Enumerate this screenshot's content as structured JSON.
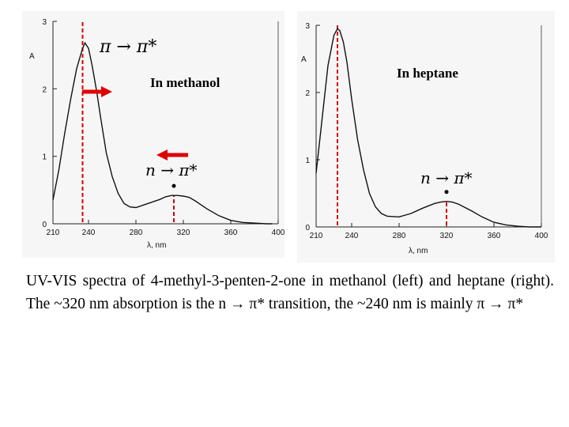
{
  "caption": "UV-VIS spectra of 4-methyl-3-penten-2-one in methanol (left) and heptane (right). The ~320 nm absorption is the n → π* transition, the ~240 nm is mainly π → π*",
  "chart_data": [
    {
      "type": "line",
      "title": "",
      "panel_label": "In methanol",
      "xlabel": "λ, nm",
      "ylabel": "A",
      "xlim": [
        210,
        400
      ],
      "ylim": [
        0,
        3
      ],
      "xticks": [
        210,
        240,
        280,
        320,
        360,
        400
      ],
      "yticks": [
        0,
        1,
        2,
        3
      ],
      "series": [
        {
          "x": [
            210,
            215,
            220,
            225,
            230,
            235,
            237,
            240,
            243,
            247,
            250,
            255,
            260,
            265,
            270,
            275,
            280,
            290,
            300,
            305,
            310,
            315,
            320,
            325,
            330,
            340,
            350,
            360,
            370,
            380,
            390,
            395
          ],
          "y": [
            0.35,
            0.8,
            1.35,
            1.85,
            2.3,
            2.6,
            2.68,
            2.6,
            2.35,
            1.95,
            1.6,
            1.05,
            0.7,
            0.45,
            0.3,
            0.25,
            0.24,
            0.3,
            0.36,
            0.4,
            0.42,
            0.42,
            0.41,
            0.39,
            0.34,
            0.22,
            0.12,
            0.05,
            0.02,
            0.01,
            0.0,
            0.0
          ]
        }
      ],
      "markers": [
        {
          "x": 235,
          "label": "π → π*"
        },
        {
          "x": 312,
          "label": "n → π*"
        }
      ],
      "arrows": [
        "right (at π → π* band)",
        "left (at n → π* band)"
      ]
    },
    {
      "type": "line",
      "title": "",
      "panel_label": "In heptane",
      "xlabel": "λ, nm",
      "ylabel": "A",
      "xlim": [
        210,
        400
      ],
      "ylim": [
        0,
        3
      ],
      "xticks": [
        210,
        240,
        280,
        320,
        360,
        400
      ],
      "yticks": [
        0,
        1,
        2,
        3
      ],
      "series": [
        {
          "x": [
            210,
            215,
            220,
            225,
            228,
            230,
            233,
            236,
            240,
            245,
            250,
            255,
            260,
            265,
            270,
            280,
            290,
            300,
            310,
            315,
            320,
            325,
            330,
            340,
            350,
            360,
            370,
            380,
            390,
            400
          ],
          "y": [
            0.8,
            1.6,
            2.4,
            2.85,
            2.95,
            2.92,
            2.75,
            2.45,
            1.9,
            1.3,
            0.85,
            0.5,
            0.3,
            0.2,
            0.16,
            0.15,
            0.2,
            0.28,
            0.35,
            0.37,
            0.38,
            0.37,
            0.34,
            0.25,
            0.15,
            0.07,
            0.03,
            0.01,
            0.0,
            0.0
          ]
        }
      ],
      "markers": [
        {
          "x": 228,
          "label": ""
        },
        {
          "x": 320,
          "label": "n → π*"
        }
      ]
    }
  ],
  "colors": {
    "curve": "#111111",
    "marker": "#d40000",
    "arrow": "#e00000",
    "plot_bg": "#f7f7f7"
  }
}
